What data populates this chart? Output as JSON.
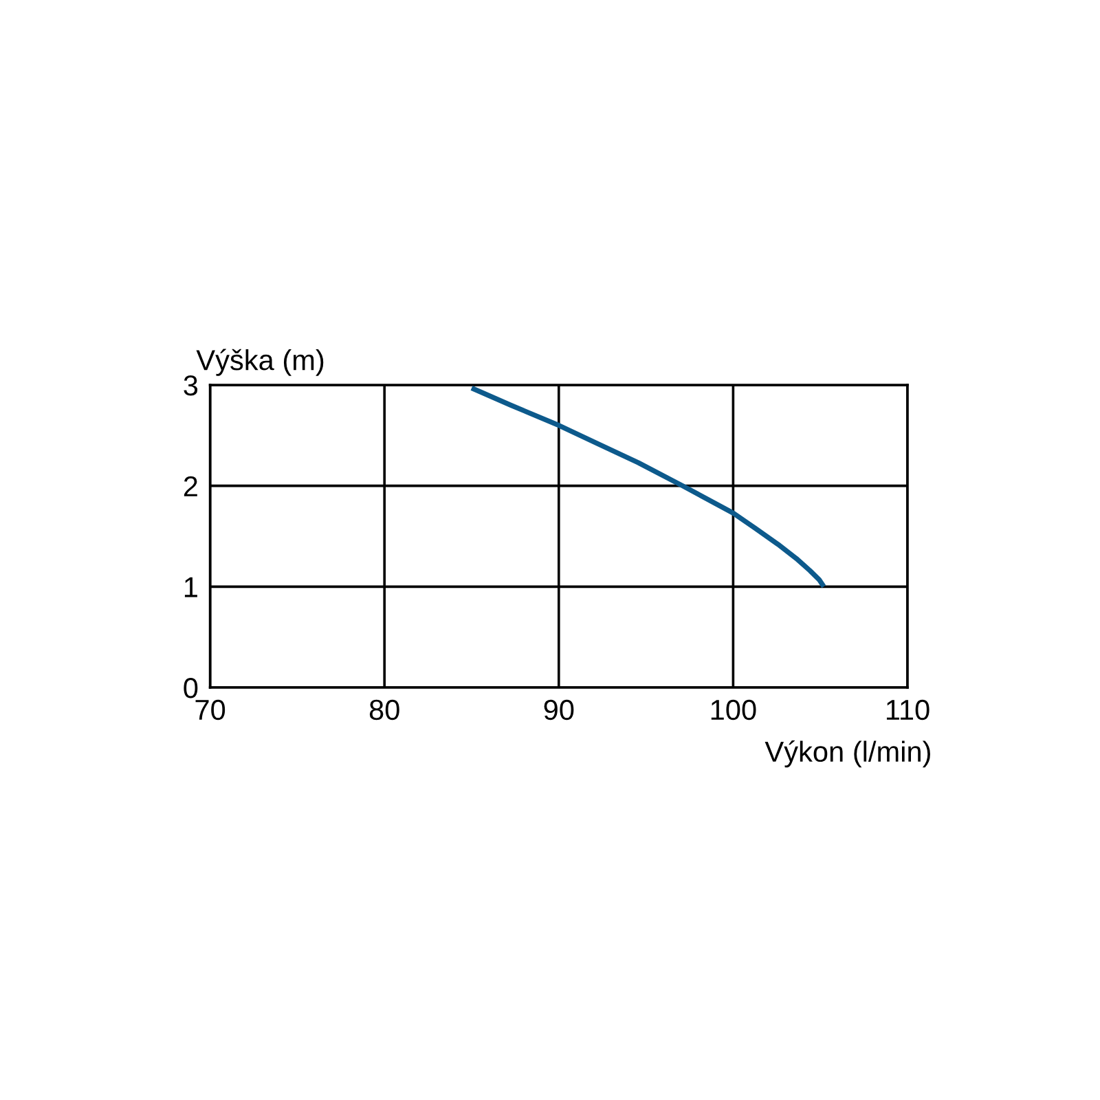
{
  "chart_data": {
    "type": "line",
    "xlabel": "Výkon (l/min)",
    "ylabel": "Výška (m)",
    "series": [
      {
        "color": "#0d5a8c",
        "x": [
          85,
          87.25,
          90,
          92.2,
          94.56,
          97.1,
          100,
          101.26,
          102.57,
          103.62,
          104.4,
          104.93,
          105.2
        ],
        "values": [
          2.97,
          2.8,
          2.6,
          2.42,
          2.23,
          2.0,
          1.73,
          1.58,
          1.42,
          1.28,
          1.16,
          1.07,
          1.0
        ]
      }
    ],
    "xlim": [
      70,
      110
    ],
    "xticks": [
      70,
      80,
      90,
      100,
      110
    ],
    "ylim": [
      0,
      3
    ],
    "yticks": [
      0,
      1,
      2,
      3
    ],
    "grid": true,
    "marker": "none",
    "line_style": "solid"
  }
}
